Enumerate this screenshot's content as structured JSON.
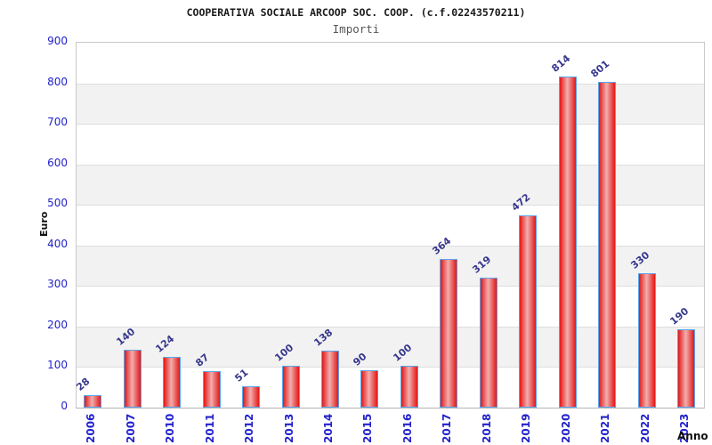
{
  "header": {
    "title": "COOPERATIVA SOCIALE ARCOOP SOC. COOP. (c.f.02243570211)",
    "subtitle": "Importi"
  },
  "chart_data": {
    "type": "bar",
    "title": "Importi",
    "categories": [
      "2006",
      "2007",
      "2010",
      "2011",
      "2012",
      "2013",
      "2014",
      "2015",
      "2016",
      "2017",
      "2018",
      "2019",
      "2020",
      "2021",
      "2022",
      "2023"
    ],
    "values": [
      28,
      140,
      124,
      87,
      51,
      100,
      138,
      90,
      100,
      364,
      319,
      472,
      814,
      801,
      330,
      190
    ],
    "xlabel": "Anno",
    "ylabel": "Euro",
    "ylim": [
      0,
      900
    ],
    "ytick_step": 100,
    "grid": true,
    "legend_position": "none",
    "alternating_bands": true,
    "colors": {
      "bar_edge": "#e11717",
      "bar_center": "#f3aeae",
      "bar_border": "#5ba3ea",
      "tick_text": "#2222cc",
      "value_label_text": "#38388e",
      "band": "#f2f2f2",
      "gridline": "#dedede",
      "title_text": "#1a1a1a",
      "subtitle_text": "#555555",
      "axis_label_text": "#111111"
    }
  }
}
